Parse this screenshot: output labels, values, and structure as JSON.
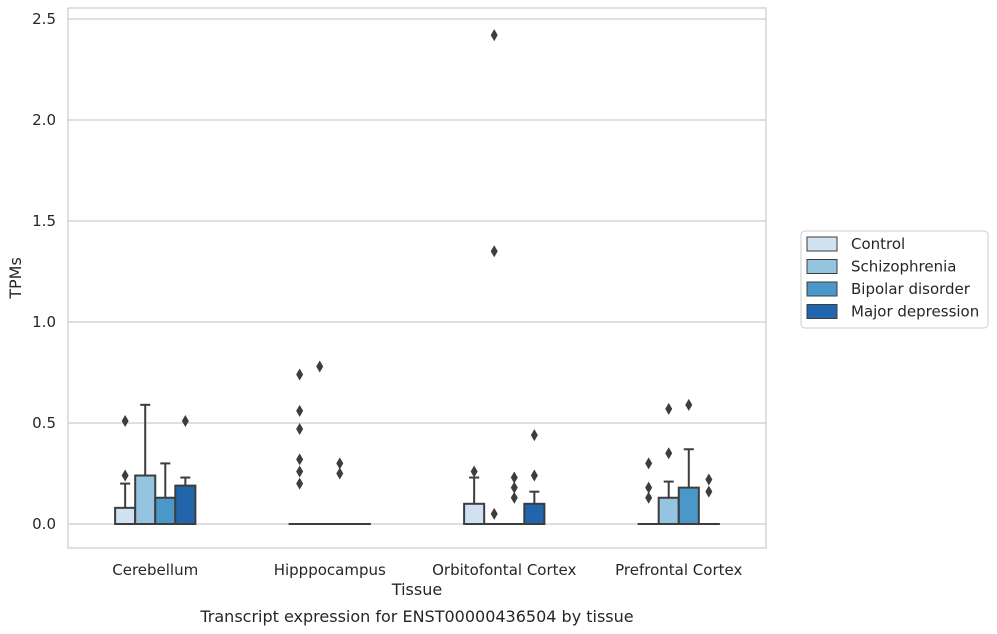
{
  "chart_data": {
    "type": "box",
    "xlabel": "Tissue",
    "ylabel": "TPMs",
    "caption": "Transcript expression for ENST00000436504 by tissue",
    "ylim": [
      -0.12,
      2.55
    ],
    "yticks": [
      "0.0",
      "0.5",
      "1.0",
      "1.5",
      "2.0",
      "2.5"
    ],
    "ytick_values": [
      0,
      0.5,
      1.0,
      1.5,
      2.0,
      2.5
    ],
    "grid": true,
    "legend_position": "right",
    "categories": [
      "Cerebellum",
      "Hipppocampus",
      "Orbitofontal Cortex",
      "Prefrontal Cortex"
    ],
    "series": [
      {
        "name": "Control",
        "color": "#d0e1f2",
        "boxes": [
          {
            "q1": 0,
            "median": 0,
            "q3": 0.08,
            "whisker_low": 0,
            "whisker_high": 0.2,
            "outliers": [
              0.24,
              0.51
            ]
          },
          {
            "q1": 0,
            "median": 0,
            "q3": 0,
            "whisker_low": 0,
            "whisker_high": 0,
            "outliers": [
              0.2,
              0.26,
              0.32,
              0.47,
              0.56,
              0.74
            ]
          },
          {
            "q1": 0,
            "median": 0,
            "q3": 0.1,
            "whisker_low": 0,
            "whisker_high": 0.23,
            "outliers": [
              0.26
            ]
          },
          {
            "q1": 0,
            "median": 0,
            "q3": 0,
            "whisker_low": 0,
            "whisker_high": 0,
            "outliers": [
              0.13,
              0.18,
              0.3
            ]
          }
        ]
      },
      {
        "name": "Schizophrenia",
        "color": "#94c4df",
        "boxes": [
          {
            "q1": 0,
            "median": 0,
            "q3": 0.24,
            "whisker_low": 0,
            "whisker_high": 0.59,
            "outliers": []
          },
          {
            "q1": 0,
            "median": 0,
            "q3": 0,
            "whisker_low": 0,
            "whisker_high": 0,
            "outliers": [
              0.78
            ]
          },
          {
            "q1": 0,
            "median": 0,
            "q3": 0,
            "whisker_low": 0,
            "whisker_high": 0,
            "outliers": [
              0.05,
              1.35,
              2.42
            ]
          },
          {
            "q1": 0,
            "median": 0,
            "q3": 0.13,
            "whisker_low": 0,
            "whisker_high": 0.21,
            "outliers": [
              0.35,
              0.57
            ]
          }
        ]
      },
      {
        "name": "Bipolar disorder",
        "color": "#4a98c9",
        "boxes": [
          {
            "q1": 0,
            "median": 0,
            "q3": 0.13,
            "whisker_low": 0,
            "whisker_high": 0.3,
            "outliers": []
          },
          {
            "q1": 0,
            "median": 0,
            "q3": 0,
            "whisker_low": 0,
            "whisker_high": 0,
            "outliers": [
              0.25,
              0.3
            ]
          },
          {
            "q1": 0,
            "median": 0,
            "q3": 0,
            "whisker_low": 0,
            "whisker_high": 0,
            "outliers": [
              0.13,
              0.18,
              0.23
            ]
          },
          {
            "q1": 0,
            "median": 0,
            "q3": 0.18,
            "whisker_low": 0,
            "whisker_high": 0.37,
            "outliers": [
              0.59
            ]
          }
        ]
      },
      {
        "name": "Major depression",
        "color": "#2166ac",
        "boxes": [
          {
            "q1": 0,
            "median": 0,
            "q3": 0.19,
            "whisker_low": 0,
            "whisker_high": 0.23,
            "outliers": [
              0.51
            ]
          },
          {
            "q1": 0,
            "median": 0,
            "q3": 0,
            "whisker_low": 0,
            "whisker_high": 0,
            "outliers": []
          },
          {
            "q1": 0,
            "median": 0,
            "q3": 0.1,
            "whisker_low": 0,
            "whisker_high": 0.16,
            "outliers": [
              0.24,
              0.44
            ]
          },
          {
            "q1": 0,
            "median": 0,
            "q3": 0,
            "whisker_low": 0,
            "whisker_high": 0,
            "outliers": [
              0.16,
              0.22
            ]
          }
        ]
      }
    ]
  }
}
